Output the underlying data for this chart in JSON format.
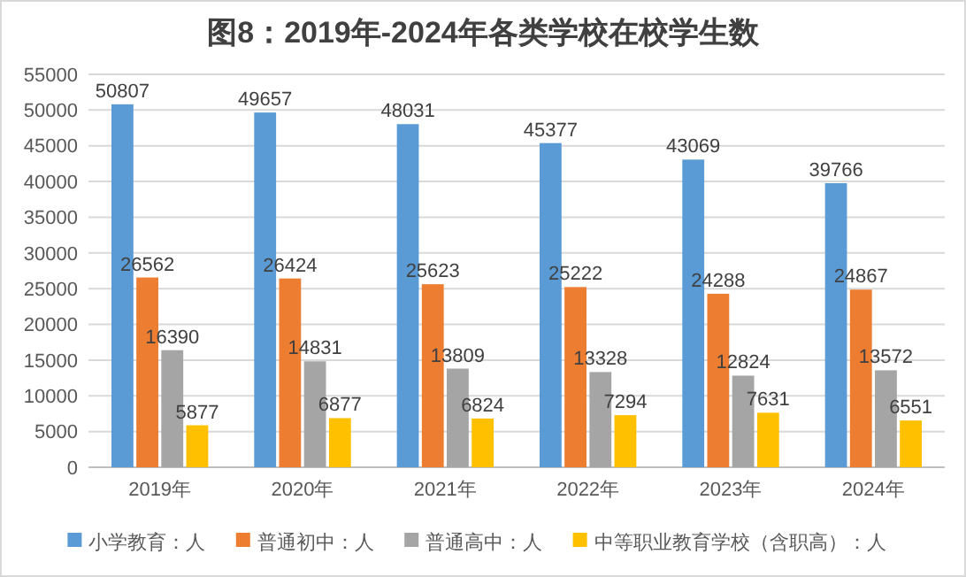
{
  "chart_data": {
    "type": "bar",
    "title": "图8：2019年-2024年各类学校在校学生数",
    "categories": [
      "2019年",
      "2020年",
      "2021年",
      "2022年",
      "2023年",
      "2024年"
    ],
    "series": [
      {
        "name": "小学教育：人",
        "color": "#5b9bd5",
        "values": [
          50807,
          49657,
          48031,
          45377,
          43069,
          39766
        ]
      },
      {
        "name": "普通初中：人",
        "color": "#ed7d31",
        "values": [
          26562,
          26424,
          25623,
          25222,
          24288,
          24867
        ]
      },
      {
        "name": "普通高中：人",
        "color": "#a5a5a5",
        "values": [
          16390,
          14831,
          13809,
          13328,
          12824,
          13572
        ]
      },
      {
        "name": "中等职业教育学校（含职高）：人",
        "color": "#ffc000",
        "values": [
          5877,
          6877,
          6824,
          7294,
          7631,
          6551
        ]
      }
    ],
    "ylim": [
      0,
      55000
    ],
    "yticks": [
      0,
      5000,
      10000,
      15000,
      20000,
      25000,
      30000,
      35000,
      40000,
      45000,
      50000,
      55000
    ],
    "grid": "y",
    "legend": "bottom",
    "data_labels": true
  }
}
